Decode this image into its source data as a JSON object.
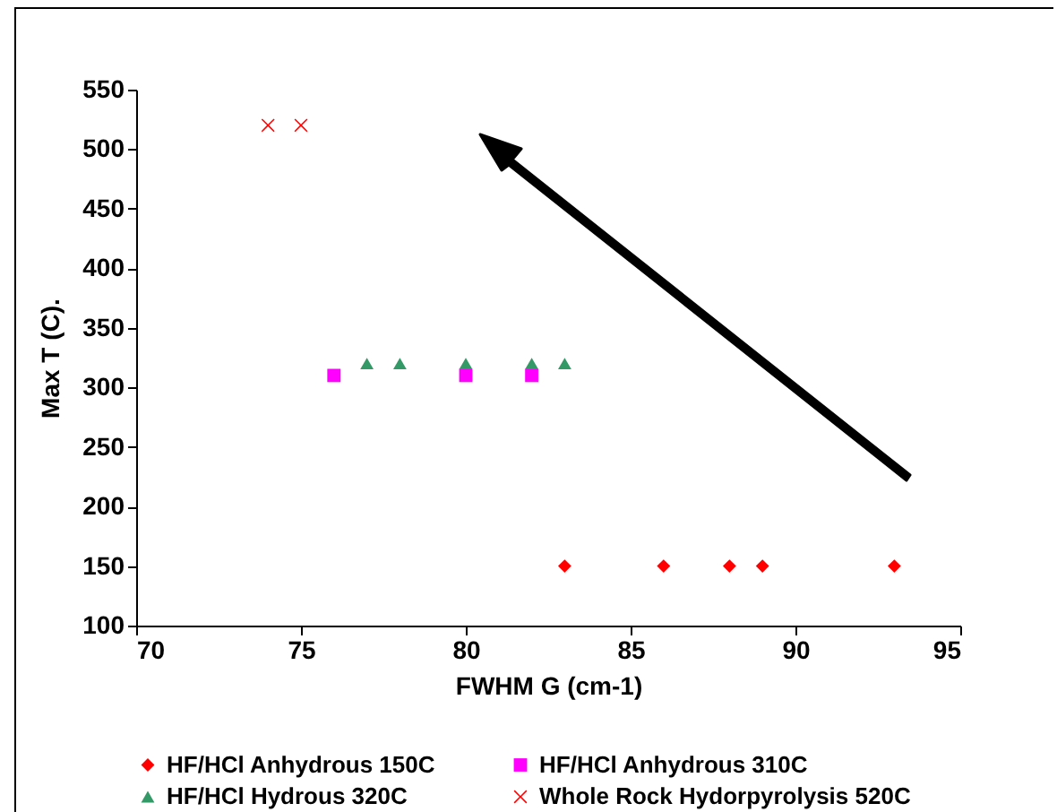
{
  "chart_data": {
    "type": "scatter",
    "xlabel": "FWHM G (cm-1)",
    "ylabel": "Max T (C).",
    "xlim": [
      70,
      95
    ],
    "xticks": [
      70,
      75,
      80,
      85,
      90,
      95
    ],
    "ylim": [
      100,
      550
    ],
    "yticks": [
      100,
      150,
      200,
      250,
      300,
      350,
      400,
      450,
      500,
      550
    ],
    "grid": false,
    "legend": "bottom",
    "series": [
      {
        "name": "HF/HCl Anhydrous 150C",
        "color": "#ff0000",
        "marker": "diamond",
        "x": [
          83,
          86,
          88,
          89,
          93
        ],
        "values": [
          150,
          150,
          150,
          150,
          150
        ]
      },
      {
        "name": "HF/HCl Anhydrous 310C",
        "color": "#ff00ff",
        "marker": "square",
        "x": [
          76,
          80,
          82
        ],
        "values": [
          310,
          310,
          310
        ]
      },
      {
        "name": "HF/HCl Hydrous 320C",
        "color": "#339966",
        "marker": "triangle",
        "x": [
          77,
          78,
          80,
          82,
          83
        ],
        "values": [
          320,
          320,
          320,
          320,
          320
        ]
      },
      {
        "name": "Whole Rock Hydorpyrolysis 520C",
        "color": "#ff0000",
        "marker": "cross",
        "x": [
          74,
          75
        ],
        "values": [
          520,
          520
        ]
      }
    ]
  }
}
